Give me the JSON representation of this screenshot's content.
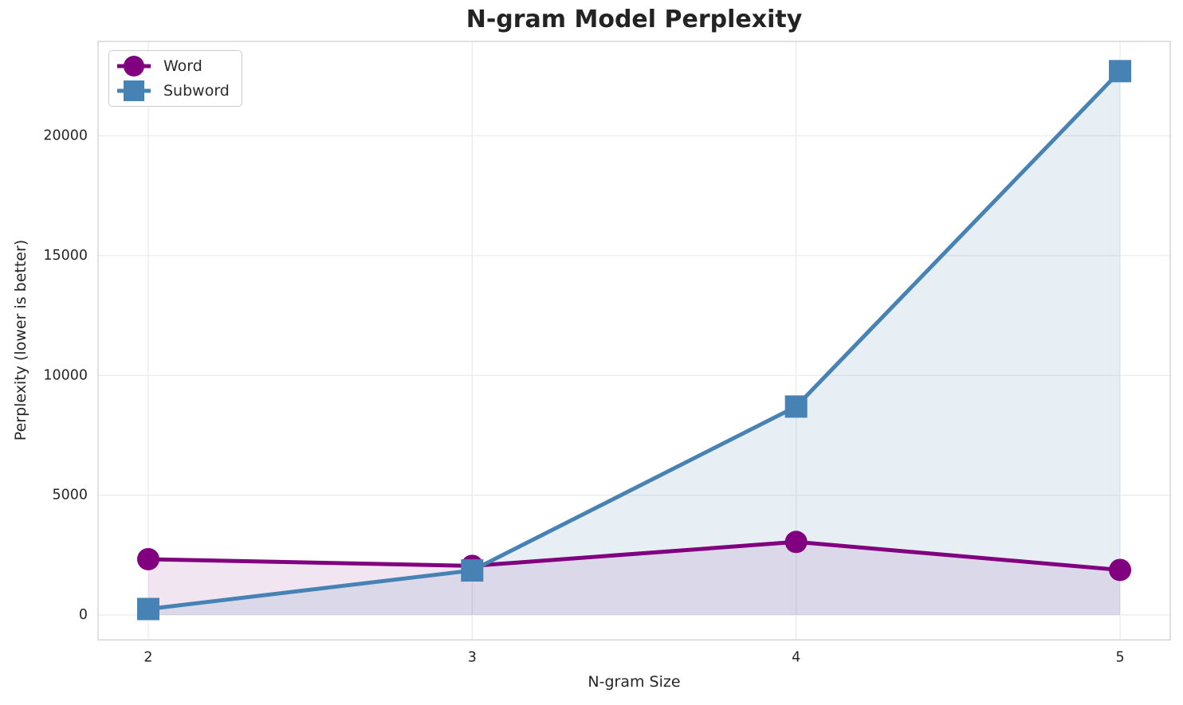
{
  "chart_data": {
    "type": "line",
    "title": "N-gram Model Perplexity",
    "xlabel": "N-gram Size",
    "ylabel": "Perplexity (lower is better)",
    "x": [
      2,
      3,
      4,
      5
    ],
    "series": [
      {
        "name": "Word",
        "color": "#800080",
        "marker": "circle",
        "fill_opacity": 0.1,
        "values": [
          2330,
          2050,
          3050,
          1880
        ]
      },
      {
        "name": "Subword",
        "color": "#4682b4",
        "marker": "square",
        "fill_opacity": 0.13,
        "values": [
          250,
          1860,
          8700,
          22700
        ]
      }
    ],
    "xticks": [
      2,
      3,
      4,
      5
    ],
    "yticks": [
      0,
      5000,
      10000,
      15000,
      20000
    ],
    "xlim": [
      1.845,
      5.155
    ],
    "ylim": [
      -1040,
      23940
    ],
    "fill_baseline": 0,
    "grid": true,
    "legend_position": "upper-left",
    "colors": {
      "grid": "#ebebeb",
      "spine": "#d5d5d5",
      "tick_text": "#262626"
    }
  }
}
